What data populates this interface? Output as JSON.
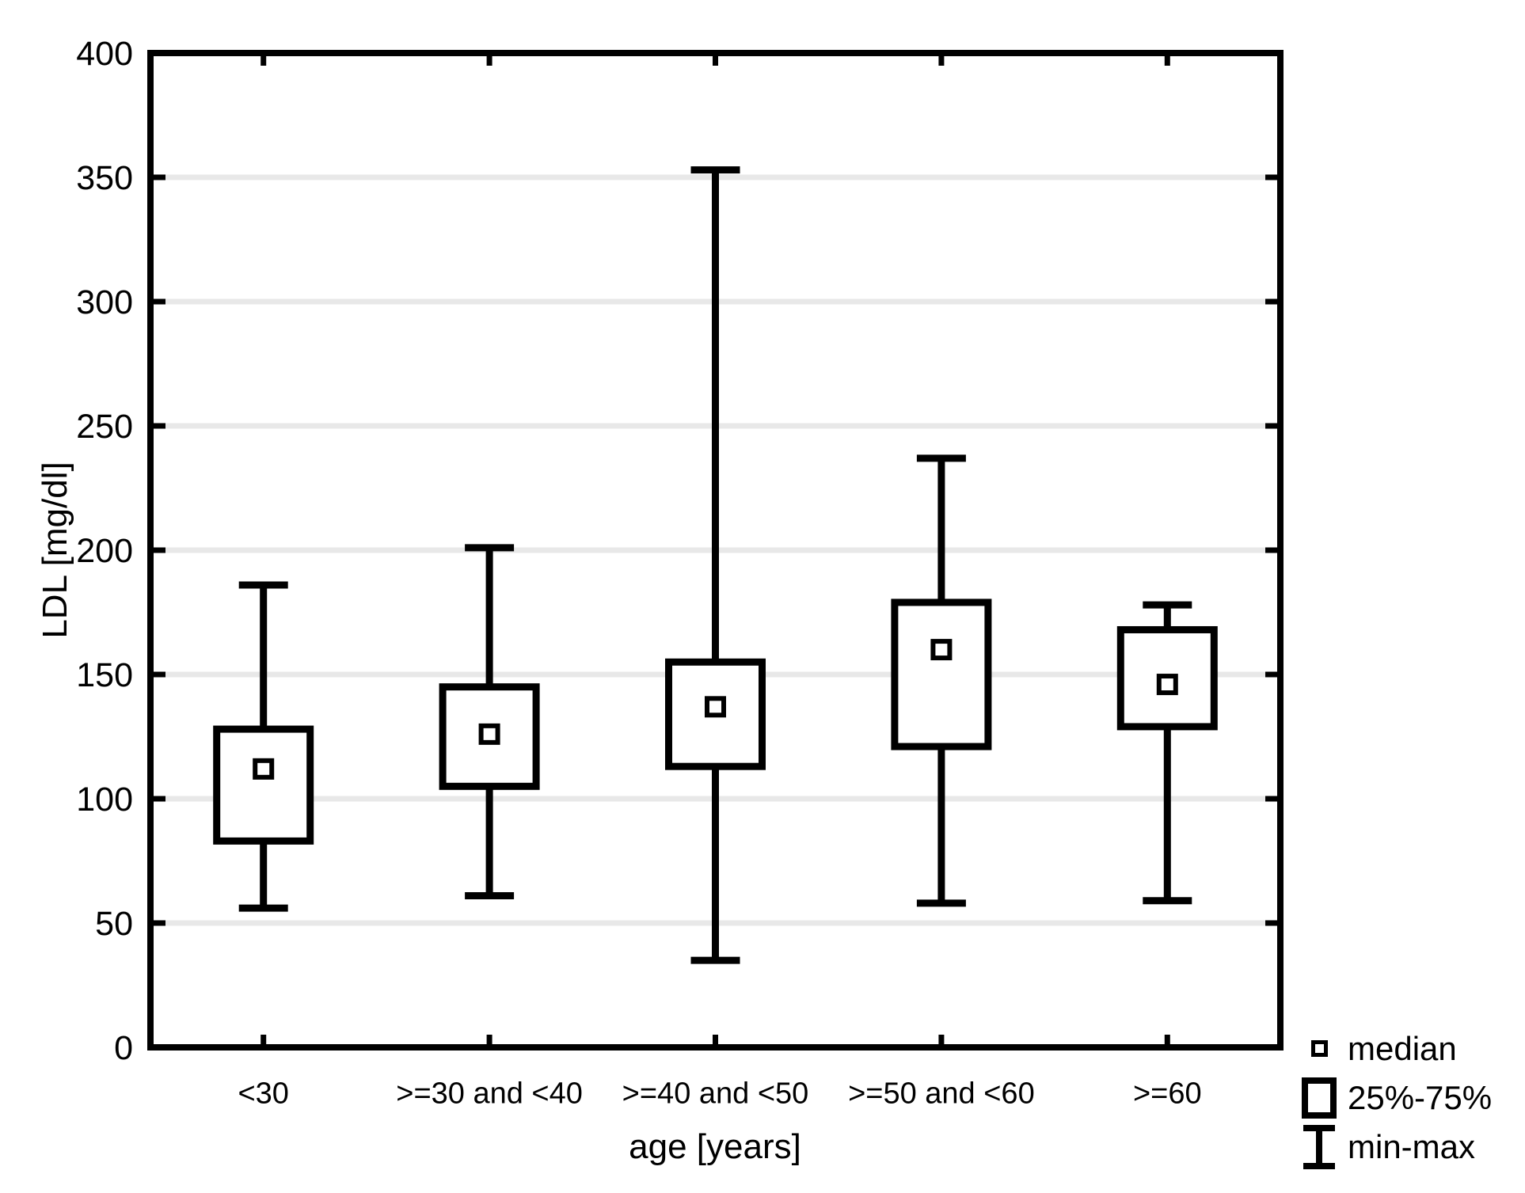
{
  "chart_data": {
    "type": "boxplot",
    "title": "",
    "xlabel": "age [years]",
    "ylabel": "LDL [mg/dl]",
    "ylim": [
      0,
      400
    ],
    "ytick_step": 50,
    "yticks": [
      0,
      50,
      100,
      150,
      200,
      250,
      300,
      350,
      400
    ],
    "grid": "horizontal gridlines at each y tick",
    "categories": [
      "<30",
      ">=30 and <40",
      ">=40 and <50",
      ">=50 and <60",
      ">=60"
    ],
    "series": [
      {
        "category": "<30",
        "min": 56,
        "q1": 83,
        "median": 112,
        "q3": 128,
        "max": 186
      },
      {
        "category": ">=30 and <40",
        "min": 61,
        "q1": 105,
        "median": 126,
        "q3": 145,
        "max": 201
      },
      {
        "category": ">=40 and <50",
        "min": 35,
        "q1": 113,
        "median": 137,
        "q3": 155,
        "max": 353
      },
      {
        "category": ">=50 and <60",
        "min": 58,
        "q1": 121,
        "median": 160,
        "q3": 179,
        "max": 237
      },
      {
        "category": ">=60",
        "min": 59,
        "q1": 129,
        "median": 146,
        "q3": 168,
        "max": 178
      }
    ],
    "legend": [
      {
        "symbol": "median-square",
        "label": "median"
      },
      {
        "symbol": "iqr-box",
        "label": "25%-75%"
      },
      {
        "symbol": "min-max-whisker",
        "label": "min-max"
      }
    ],
    "legend_position": "bottom-right",
    "colors": {
      "stroke": "#000000",
      "fill": "#ffffff",
      "gridline": "#e8e8e8",
      "background": "#ffffff",
      "text": "#000000"
    }
  }
}
